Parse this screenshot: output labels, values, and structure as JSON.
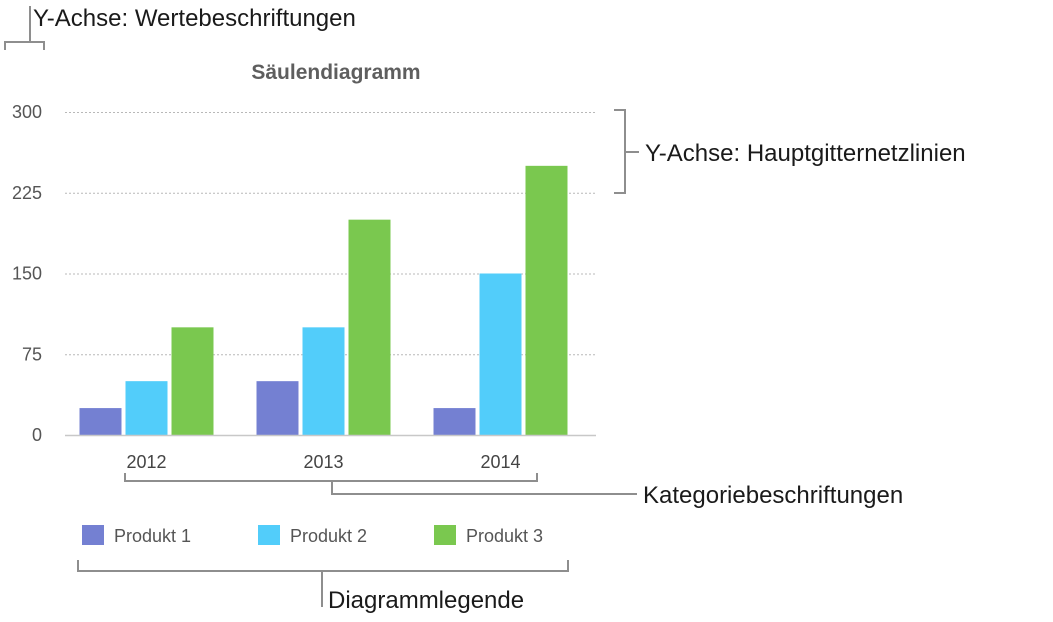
{
  "chart_data": {
    "type": "bar",
    "title": "Säulendiagramm",
    "categories": [
      "2012",
      "2013",
      "2014"
    ],
    "series": [
      {
        "name": "Produkt 1",
        "color": "#7480d2",
        "values": [
          25,
          50,
          25
        ]
      },
      {
        "name": "Produkt 2",
        "color": "#52cdfa",
        "values": [
          50,
          100,
          150
        ]
      },
      {
        "name": "Produkt 3",
        "color": "#7ac84f",
        "values": [
          100,
          200,
          250
        ]
      }
    ],
    "yticks": [
      "0",
      "75",
      "150",
      "225",
      "300"
    ],
    "ylim": [
      0,
      300
    ],
    "grid": true,
    "legend_position": "bottom"
  },
  "annotations": {
    "value_labels": "Y-Achse: Wertebeschriftungen",
    "major_gridlines": "Y-Achse: Hauptgitternetzlinien",
    "category_labels": "Kategoriebeschriftungen",
    "legend": "Diagrammlegende"
  }
}
